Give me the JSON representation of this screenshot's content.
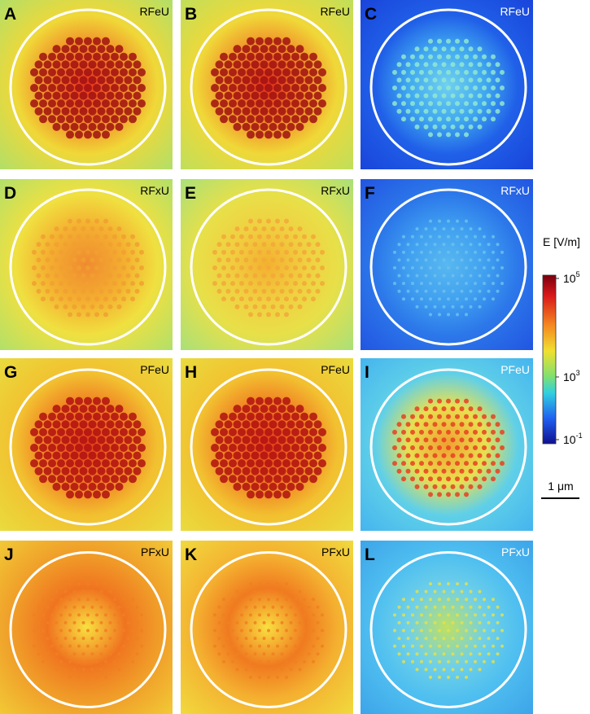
{
  "panels": [
    {
      "letter": "A",
      "label": "RFeU"
    },
    {
      "letter": "B",
      "label": "RFeU"
    },
    {
      "letter": "C",
      "label": "RFeU"
    },
    {
      "letter": "D",
      "label": "RFxU"
    },
    {
      "letter": "E",
      "label": "RFxU"
    },
    {
      "letter": "F",
      "label": "RFxU"
    },
    {
      "letter": "G",
      "label": "PFeU"
    },
    {
      "letter": "H",
      "label": "PFeU"
    },
    {
      "letter": "I",
      "label": "PFeU"
    },
    {
      "letter": "J",
      "label": "PFxU"
    },
    {
      "letter": "K",
      "label": "PFxU"
    },
    {
      "letter": "L",
      "label": "PFxU"
    }
  ],
  "colorbar": {
    "title": "E [V/m]",
    "ticks": [
      {
        "base": "10",
        "exponent": "5"
      },
      {
        "base": "10",
        "exponent": "3"
      },
      {
        "base": "10",
        "exponent": "-1"
      }
    ]
  },
  "scale_bar": {
    "label": "1 μm"
  }
}
